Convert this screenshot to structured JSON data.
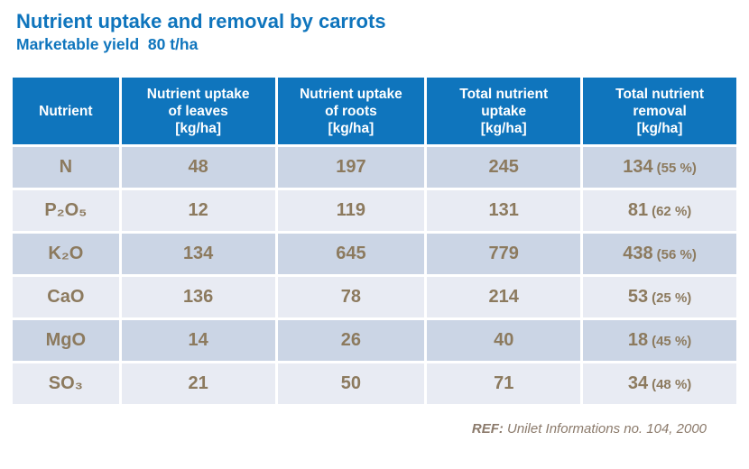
{
  "page": {
    "title": "Nutrient uptake and removal by carrots",
    "subtitle": "Marketable yield  80 t/ha"
  },
  "colors": {
    "accent_blue": "#0f75bd",
    "header_text": "#ffffff",
    "row_dark": "#cbd5e5",
    "row_light": "#e8ebf3",
    "data_text": "#8c7a5e",
    "footer_text": "#8b7a6b",
    "background": "#ffffff"
  },
  "table": {
    "columns": [
      {
        "label": "Nutrient"
      },
      {
        "label": "Nutrient uptake\nof leaves\n[kg/ha]"
      },
      {
        "label": "Nutrient uptake\nof roots\n[kg/ha]"
      },
      {
        "label": "Total nutrient\nuptake\n[kg/ha]"
      },
      {
        "label": "Total nutrient\nremoval\n[kg/ha]"
      }
    ],
    "rows": [
      {
        "nutrient": "N",
        "uptake_leaves": "48",
        "uptake_roots": "197",
        "total_uptake": "245",
        "removal_value": "134",
        "removal_pct": "(55 %)"
      },
      {
        "nutrient": "P₂O₅",
        "uptake_leaves": "12",
        "uptake_roots": "119",
        "total_uptake": "131",
        "removal_value": "81",
        "removal_pct": "(62 %)"
      },
      {
        "nutrient": "K₂O",
        "uptake_leaves": "134",
        "uptake_roots": "645",
        "total_uptake": "779",
        "removal_value": "438",
        "removal_pct": "(56 %)"
      },
      {
        "nutrient": "CaO",
        "uptake_leaves": "136",
        "uptake_roots": "78",
        "total_uptake": "214",
        "removal_value": "53",
        "removal_pct": "(25 %)"
      },
      {
        "nutrient": "MgO",
        "uptake_leaves": "14",
        "uptake_roots": "26",
        "total_uptake": "40",
        "removal_value": "18",
        "removal_pct": "(45 %)"
      },
      {
        "nutrient": "SO₃",
        "uptake_leaves": "21",
        "uptake_roots": "50",
        "total_uptake": "71",
        "removal_value": "34",
        "removal_pct": "(48 %)"
      }
    ]
  },
  "footer": {
    "ref_label": "REF:",
    "ref_text": " Unilet Informations no. 104, 2000"
  }
}
